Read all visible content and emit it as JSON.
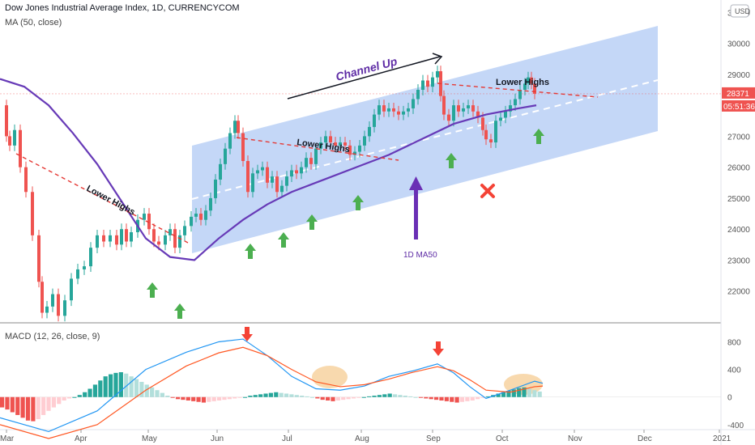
{
  "header": {
    "title": "Dow Jones Industrial Average Index, 1D, CURRENCYCOM",
    "ma_label": "MA (50, close)",
    "macd_label": "MACD (12, 26, close, 9)",
    "currency": "USD"
  },
  "price_tag": {
    "value": "28371",
    "countdown": "05:51:36"
  },
  "annotations": {
    "channel": "Channel Up",
    "lower_highs": [
      "Lower Highs",
      "Lower Highs",
      "Lower Highs"
    ],
    "ma50": "1D MA50"
  },
  "colors": {
    "up": "#26a69a",
    "down": "#ef5350",
    "ma": "#673ab7",
    "channel_fill": "#b3ccf5",
    "arrow_green": "#4caf50",
    "arrow_red": "#f44336",
    "macd_line": "#2196f3",
    "signal_line": "#ff5722",
    "highlight": "#f5c98b"
  },
  "chart_data": {
    "type": "candlestick",
    "x_axis_labels": [
      "Mar",
      "Apr",
      "May",
      "Jun",
      "Jul",
      "Aug",
      "Sep",
      "Oct",
      "Nov",
      "Dec",
      "2021"
    ],
    "price_axis": {
      "ticks": [
        22000,
        23000,
        24000,
        25000,
        26000,
        27000,
        28000,
        29000,
        30000,
        31000
      ],
      "range": [
        21000,
        31400
      ]
    },
    "macd_axis": {
      "ticks": [
        800,
        400,
        0,
        -400
      ],
      "range": [
        -460,
        1040
      ]
    },
    "series": [
      {
        "name": "Price",
        "points": [
          [
            0,
            28000
          ],
          [
            8,
            27000
          ],
          [
            12,
            26700
          ],
          [
            18,
            27200
          ],
          [
            25,
            26000
          ],
          [
            32,
            25200
          ],
          [
            40,
            23800
          ],
          [
            48,
            22300
          ],
          [
            52,
            21300
          ],
          [
            58,
            21500
          ],
          [
            65,
            21900
          ],
          [
            72,
            21200
          ],
          [
            80,
            21700
          ],
          [
            88,
            22400
          ],
          [
            96,
            22700
          ],
          [
            104,
            22800
          ],
          [
            112,
            23400
          ],
          [
            120,
            23800
          ],
          [
            128,
            23600
          ],
          [
            136,
            23800
          ],
          [
            144,
            23500
          ],
          [
            150,
            24000
          ],
          [
            156,
            23600
          ],
          [
            162,
            23900
          ],
          [
            170,
            24300
          ],
          [
            178,
            24500
          ],
          [
            184,
            24000
          ],
          [
            190,
            23600
          ],
          [
            196,
            23500
          ],
          [
            204,
            23800
          ],
          [
            210,
            24000
          ],
          [
            216,
            23400
          ],
          [
            222,
            23800
          ],
          [
            228,
            24100
          ],
          [
            236,
            24400
          ],
          [
            242,
            24500
          ],
          [
            248,
            24300
          ],
          [
            254,
            24600
          ],
          [
            260,
            25000
          ],
          [
            266,
            25600
          ],
          [
            272,
            26100
          ],
          [
            278,
            26600
          ],
          [
            284,
            27100
          ],
          [
            290,
            27500
          ],
          [
            294,
            27100
          ],
          [
            300,
            26200
          ],
          [
            306,
            25200
          ],
          [
            312,
            25800
          ],
          [
            318,
            25900
          ],
          [
            324,
            26000
          ],
          [
            330,
            25500
          ],
          [
            336,
            25700
          ],
          [
            342,
            25200
          ],
          [
            348,
            25400
          ],
          [
            354,
            25700
          ],
          [
            360,
            25900
          ],
          [
            366,
            25800
          ],
          [
            372,
            26000
          ],
          [
            378,
            26300
          ],
          [
            384,
            26100
          ],
          [
            390,
            26600
          ],
          [
            396,
            26800
          ],
          [
            402,
            27000
          ],
          [
            408,
            26800
          ],
          [
            414,
            26700
          ],
          [
            420,
            26800
          ],
          [
            426,
            26700
          ],
          [
            432,
            26400
          ],
          [
            438,
            26500
          ],
          [
            444,
            26700
          ],
          [
            450,
            27000
          ],
          [
            456,
            27300
          ],
          [
            462,
            27700
          ],
          [
            468,
            28000
          ],
          [
            474,
            27800
          ],
          [
            480,
            27900
          ],
          [
            486,
            27800
          ],
          [
            492,
            27700
          ],
          [
            498,
            27800
          ],
          [
            504,
            27900
          ],
          [
            510,
            28200
          ],
          [
            516,
            28500
          ],
          [
            522,
            28800
          ],
          [
            528,
            28600
          ],
          [
            534,
            28900
          ],
          [
            540,
            29100
          ],
          [
            544,
            28300
          ],
          [
            548,
            27700
          ],
          [
            554,
            27500
          ],
          [
            560,
            28000
          ],
          [
            566,
            27800
          ],
          [
            572,
            27900
          ],
          [
            578,
            28000
          ],
          [
            584,
            27800
          ],
          [
            590,
            27600
          ],
          [
            596,
            27200
          ],
          [
            600,
            26900
          ],
          [
            606,
            26800
          ],
          [
            612,
            27500
          ],
          [
            618,
            27600
          ],
          [
            624,
            27800
          ],
          [
            630,
            28000
          ],
          [
            636,
            28200
          ],
          [
            642,
            28500
          ],
          [
            648,
            28700
          ],
          [
            652,
            28900
          ],
          [
            656,
            28700
          ],
          [
            660,
            28371
          ]
        ]
      },
      {
        "name": "MA (50, close)",
        "points": [
          [
            0,
            28850
          ],
          [
            30,
            28600
          ],
          [
            60,
            28000
          ],
          [
            90,
            27100
          ],
          [
            120,
            26100
          ],
          [
            150,
            24900
          ],
          [
            180,
            23700
          ],
          [
            210,
            23100
          ],
          [
            240,
            23000
          ],
          [
            270,
            23700
          ],
          [
            300,
            24300
          ],
          [
            330,
            24800
          ],
          [
            360,
            25200
          ],
          [
            400,
            25600
          ],
          [
            440,
            26000
          ],
          [
            480,
            26400
          ],
          [
            520,
            26900
          ],
          [
            560,
            27400
          ],
          [
            600,
            27700
          ],
          [
            640,
            27900
          ],
          [
            662,
            28000
          ]
        ]
      }
    ],
    "macd_histogram": {
      "values": [
        -150,
        -180,
        -220,
        -260,
        -300,
        -340,
        -350,
        -320,
        -260,
        -200,
        -150,
        -100,
        -50,
        -20,
        0,
        30,
        70,
        120,
        180,
        240,
        300,
        330,
        350,
        360,
        340,
        300,
        260,
        220,
        180,
        140,
        100,
        60,
        20,
        -10,
        -30,
        -40,
        -50,
        -60,
        -70,
        -80,
        -70,
        -60,
        -50,
        -40,
        -30,
        -20,
        -10,
        0,
        20,
        30,
        40,
        50,
        60,
        70,
        60,
        50,
        40,
        30,
        20,
        10,
        0,
        -20,
        -40,
        -50,
        -60,
        -50,
        -40,
        -30,
        -20,
        -10,
        0,
        10,
        20,
        30,
        40,
        50,
        40,
        30,
        20,
        10,
        0,
        -10,
        -20,
        -30,
        -40,
        -50,
        -60,
        -70,
        -80,
        -70,
        -60,
        -50,
        -30,
        -10,
        10,
        30,
        50,
        70,
        90,
        110,
        130,
        140,
        120,
        100,
        80
      ]
    },
    "macd_line": [
      [
        0,
        -300
      ],
      [
        60,
        -500
      ],
      [
        120,
        -200
      ],
      [
        180,
        400
      ],
      [
        230,
        650
      ],
      [
        270,
        800
      ],
      [
        300,
        840
      ],
      [
        330,
        600
      ],
      [
        360,
        300
      ],
      [
        390,
        120
      ],
      [
        420,
        100
      ],
      [
        450,
        160
      ],
      [
        480,
        300
      ],
      [
        510,
        380
      ],
      [
        540,
        480
      ],
      [
        560,
        350
      ],
      [
        580,
        150
      ],
      [
        600,
        -20
      ],
      [
        630,
        100
      ],
      [
        660,
        230
      ],
      [
        670,
        200
      ]
    ],
    "signal_line": [
      [
        0,
        -400
      ],
      [
        60,
        -600
      ],
      [
        120,
        -400
      ],
      [
        180,
        100
      ],
      [
        230,
        450
      ],
      [
        270,
        640
      ],
      [
        300,
        720
      ],
      [
        330,
        600
      ],
      [
        360,
        400
      ],
      [
        390,
        220
      ],
      [
        420,
        150
      ],
      [
        450,
        180
      ],
      [
        480,
        260
      ],
      [
        510,
        360
      ],
      [
        540,
        440
      ],
      [
        560,
        380
      ],
      [
        580,
        250
      ],
      [
        600,
        100
      ],
      [
        630,
        70
      ],
      [
        660,
        150
      ],
      [
        670,
        160
      ]
    ]
  }
}
